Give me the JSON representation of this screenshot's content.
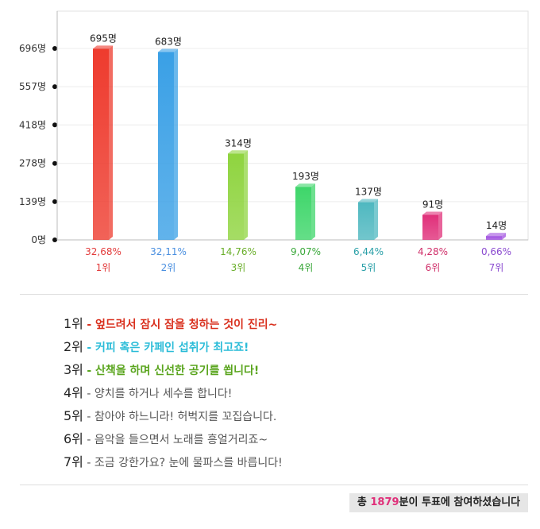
{
  "chart_data": {
    "type": "bar",
    "categories": [
      "1위",
      "2위",
      "3위",
      "4위",
      "5위",
      "6위",
      "7위"
    ],
    "values": [
      695,
      683,
      314,
      193,
      137,
      91,
      14
    ],
    "value_labels": [
      "695명",
      "683명",
      "314명",
      "193명",
      "137명",
      "91명",
      "14명"
    ],
    "percentages": [
      "32,68%",
      "32,11%",
      "14,76%",
      "9,07%",
      "6,44%",
      "4,28%",
      "0,66%"
    ],
    "yticks": [
      "0명",
      "139명",
      "278명",
      "418명",
      "557명",
      "696명"
    ],
    "ytick_values": [
      0,
      139,
      278,
      418,
      557,
      696
    ],
    "ylim": [
      0,
      696
    ],
    "grid": true,
    "colors": [
      "#ee3b2e",
      "#3aa0e6",
      "#8fd43f",
      "#3ed66a",
      "#4fb8c0",
      "#e0307a",
      "#a050e0"
    ],
    "pct_colors": [
      "#e23b3b",
      "#4a8fe0",
      "#6aae2a",
      "#3aa83a",
      "#2aa0a8",
      "#d0306a",
      "#8a4ad0"
    ]
  },
  "legend": [
    {
      "rank": "1위",
      "text": "- 엎드려서 잠시 잠을 청하는 것이 진리~",
      "color": "#d9301e",
      "bold": true
    },
    {
      "rank": "2위",
      "text": "- 커피 혹은 카페인 섭취가 최고죠!",
      "color": "#2bbcd8",
      "bold": true
    },
    {
      "rank": "3위",
      "text": "- 산책을 하며 신선한 공기를 쐽니다!",
      "color": "#5aa51e",
      "bold": true
    },
    {
      "rank": "4위",
      "text": "- 양치를 하거나 세수를 합니다!",
      "color": "#555555",
      "bold": false
    },
    {
      "rank": "5위",
      "text": "- 참아야 하느니라! 허벅지를 꼬집습니다.",
      "color": "#555555",
      "bold": false
    },
    {
      "rank": "6위",
      "text": "- 음악을 들으면서 노래를 흥얼거리죠~",
      "color": "#555555",
      "bold": false
    },
    {
      "rank": "7위",
      "text": "- 조금 강한가요? 눈에 물파스를 바릅니다!",
      "color": "#555555",
      "bold": false
    }
  ],
  "total": {
    "prefix": "총 ",
    "count": "1879",
    "suffix": "분이 투표에 참여하셨습니다"
  }
}
